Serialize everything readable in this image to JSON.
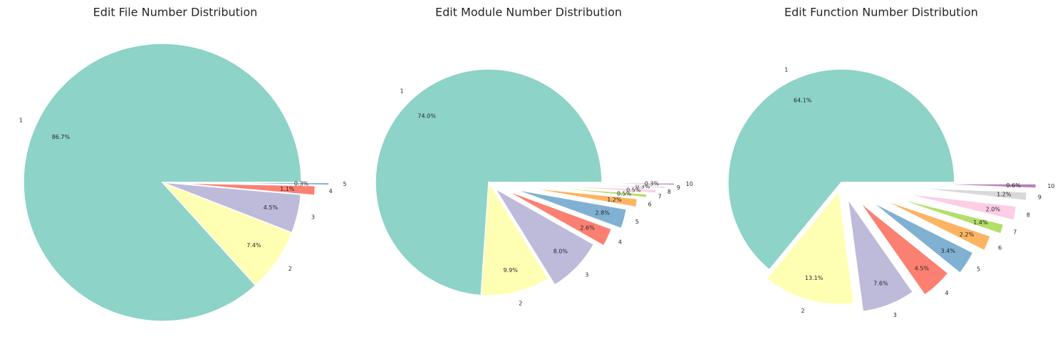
{
  "chart_data": [
    {
      "type": "pie",
      "title": "Edit File Number Distribution",
      "categories": [
        "1",
        "2",
        "3",
        "4",
        "5"
      ],
      "values": [
        86.7,
        7.4,
        4.5,
        1.1,
        0.3
      ],
      "value_labels": [
        "86.7%",
        "7.4%",
        "4.5%",
        "1.1%",
        "0.3%"
      ],
      "colors": [
        "#8dd3c7",
        "#ffffb3",
        "#bebada",
        "#fb8072",
        "#80b1d3"
      ]
    },
    {
      "type": "pie",
      "title": "Edit Module Number Distribution",
      "categories": [
        "1",
        "2",
        "3",
        "4",
        "5",
        "6",
        "7",
        "8",
        "9",
        "10"
      ],
      "values": [
        74.0,
        9.9,
        8.0,
        2.6,
        2.8,
        1.2,
        0.5,
        0.5,
        0.3,
        0.3
      ],
      "value_labels": [
        "74.0%",
        "9.9%",
        "8.0%",
        "2.6%",
        "2.8%",
        "1.2%",
        "0.5%",
        "0.5%",
        "0.3%",
        "0.3%"
      ],
      "colors": [
        "#8dd3c7",
        "#ffffb3",
        "#bebada",
        "#fb8072",
        "#80b1d3",
        "#fdb462",
        "#b3de69",
        "#fccde5",
        "#d9d9d9",
        "#bc80bd"
      ]
    },
    {
      "type": "pie",
      "title": "Edit Function Number Distribution",
      "categories": [
        "1",
        "2",
        "3",
        "4",
        "5",
        "6",
        "7",
        "8",
        "9",
        "10"
      ],
      "values": [
        64.1,
        13.1,
        7.6,
        4.5,
        3.4,
        2.2,
        1.4,
        2.0,
        1.2,
        0.6
      ],
      "value_labels": [
        "64.1%",
        "13.1%",
        "7.6%",
        "4.5%",
        "3.4%",
        "2.2%",
        "1.4%",
        "2.0%",
        "1.2%",
        "0.6%"
      ],
      "colors": [
        "#8dd3c7",
        "#ffffb3",
        "#bebada",
        "#fb8072",
        "#80b1d3",
        "#fdb462",
        "#b3de69",
        "#fccde5",
        "#d9d9d9",
        "#bc80bd"
      ]
    }
  ]
}
